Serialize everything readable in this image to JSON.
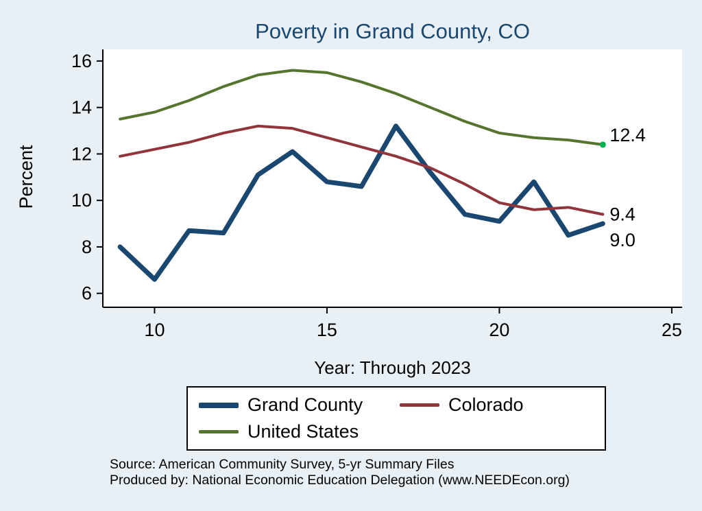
{
  "title": "Poverty in Grand County, CO",
  "background_color": "#e8f0f6",
  "title_color": "#1a476f",
  "chart_data": {
    "type": "line",
    "title": "Poverty in Grand County, CO",
    "xlabel": "Year: Through 2023",
    "ylabel": "Percent",
    "xlim": [
      8.5,
      25.3
    ],
    "ylim": [
      5.4,
      16.5
    ],
    "xticks": [
      10,
      15,
      20,
      25
    ],
    "yticks": [
      6,
      8,
      10,
      12,
      14,
      16
    ],
    "grid": false,
    "legend_position": "bottom",
    "x": [
      9,
      10,
      11,
      12,
      13,
      14,
      15,
      16,
      17,
      18,
      19,
      20,
      21,
      22,
      23
    ],
    "series": [
      {
        "name": "Grand County",
        "color": "#1a476f",
        "width": 7,
        "values": [
          8.0,
          6.6,
          8.7,
          8.6,
          11.1,
          12.1,
          10.8,
          10.6,
          13.2,
          11.2,
          9.4,
          9.1,
          10.8,
          8.5,
          9.0
        ],
        "end_label": "9.0"
      },
      {
        "name": "Colorado",
        "color": "#90353b",
        "width": 4,
        "values": [
          11.9,
          12.2,
          12.5,
          12.9,
          13.2,
          13.1,
          12.7,
          12.3,
          11.9,
          11.4,
          10.7,
          9.9,
          9.6,
          9.7,
          9.4
        ],
        "end_label": "9.4"
      },
      {
        "name": "United States",
        "color": "#55752f",
        "width": 4,
        "values": [
          13.5,
          13.8,
          14.3,
          14.9,
          15.4,
          15.6,
          15.5,
          15.1,
          14.6,
          14.0,
          13.4,
          12.9,
          12.7,
          12.6,
          12.4
        ],
        "end_label": "12.4",
        "end_marker_color": "#00b050"
      }
    ]
  },
  "footnotes": [
    "Source: American Community Survey, 5-yr Summary Files",
    "Produced by: National Economic Education Delegation (www.NEEDEcon.org)"
  ]
}
